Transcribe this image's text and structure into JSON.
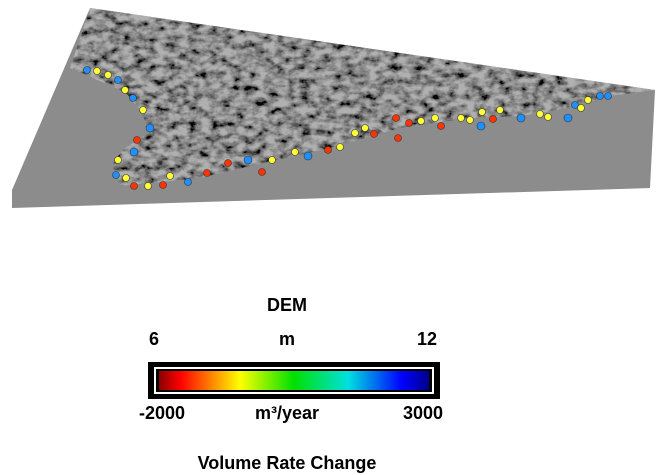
{
  "legend": {
    "title": "DEM",
    "dem_min": "6",
    "dem_unit": "m",
    "dem_max": "12",
    "rate_min": "-2000",
    "rate_unit": "m³/year",
    "rate_max": "3000",
    "caption": "Volume Rate Change"
  }
}
